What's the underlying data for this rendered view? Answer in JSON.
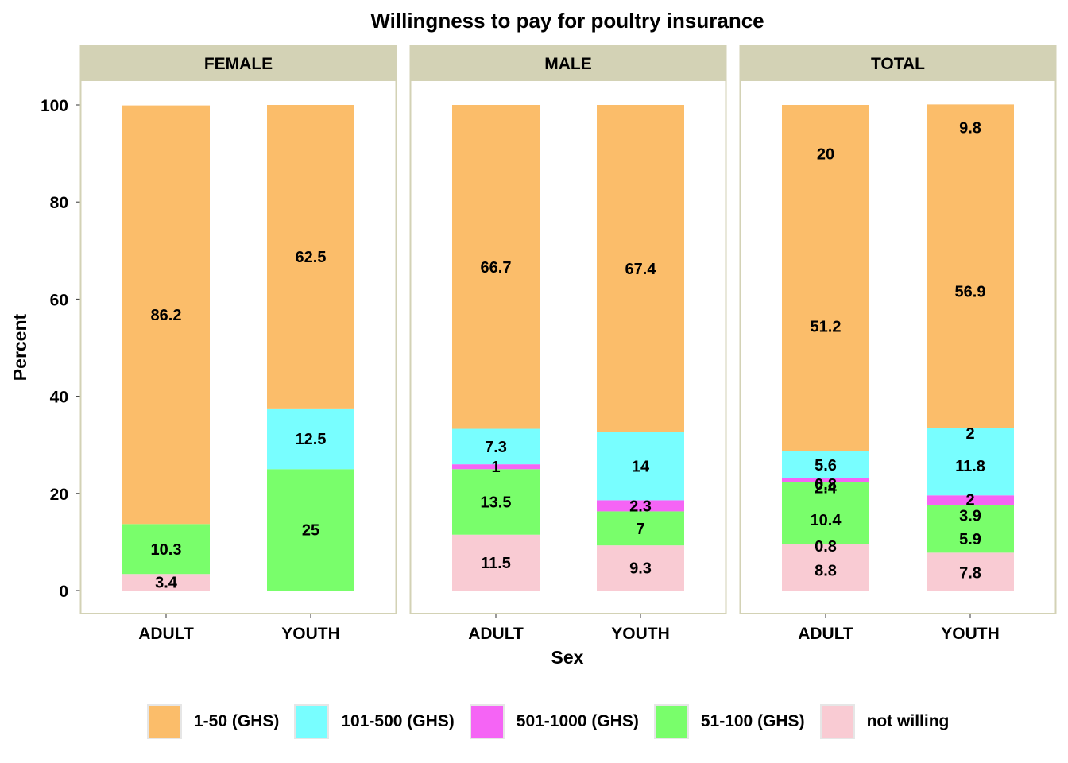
{
  "chart_data": {
    "type": "bar",
    "stacked": true,
    "title": "Willingness to pay for poultry insurance",
    "xlabel": "Sex",
    "ylabel": "Percent",
    "ylim": [
      0,
      100
    ],
    "yticks": [
      0,
      20,
      40,
      60,
      80,
      100
    ],
    "grid": false,
    "legend_position": "bottom",
    "facets": [
      "FEMALE",
      "MALE",
      "TOTAL"
    ],
    "categories": [
      "ADULT",
      "YOUTH"
    ],
    "series": [
      {
        "name": "not willing",
        "color": "#f9cbd3"
      },
      {
        "name": "51-100 (GHS)",
        "color": "#79fe6b"
      },
      {
        "name": "501-1000 (GHS)",
        "color": "#f564f5"
      },
      {
        "name": "101-500 (GHS)",
        "color": "#78feff"
      },
      {
        "name": "1-50 (GHS)",
        "color": "#fbbd6a"
      }
    ],
    "legend_order": [
      "1-50 (GHS)",
      "101-500 (GHS)",
      "501-1000 (GHS)",
      "51-100 (GHS)",
      "not willing"
    ],
    "bars": [
      {
        "facet": "FEMALE",
        "category": "ADULT",
        "segments": [
          {
            "series": "not willing",
            "value": 3.4,
            "label": "3.4"
          },
          {
            "series": "51-100 (GHS)",
            "value": 10.3,
            "label": "10.3"
          },
          {
            "series": "1-50 (GHS)",
            "value": 86.2,
            "label": "86.2"
          }
        ]
      },
      {
        "facet": "FEMALE",
        "category": "YOUTH",
        "segments": [
          {
            "series": "51-100 (GHS)",
            "value": 25,
            "label": "25"
          },
          {
            "series": "101-500 (GHS)",
            "value": 12.5,
            "label": "12.5"
          },
          {
            "series": "1-50 (GHS)",
            "value": 62.5,
            "label": "62.5"
          }
        ]
      },
      {
        "facet": "MALE",
        "category": "ADULT",
        "segments": [
          {
            "series": "not willing",
            "value": 11.5,
            "label": "11.5"
          },
          {
            "series": "51-100 (GHS)",
            "value": 13.5,
            "label": "13.5"
          },
          {
            "series": "501-1000 (GHS)",
            "value": 1,
            "label": "1"
          },
          {
            "series": "101-500 (GHS)",
            "value": 7.3,
            "label": "7.3"
          },
          {
            "series": "1-50 (GHS)",
            "value": 66.7,
            "label": "66.7"
          }
        ]
      },
      {
        "facet": "MALE",
        "category": "YOUTH",
        "segments": [
          {
            "series": "not willing",
            "value": 9.3,
            "label": "9.3"
          },
          {
            "series": "51-100 (GHS)",
            "value": 7,
            "label": "7"
          },
          {
            "series": "501-1000 (GHS)",
            "value": 2.3,
            "label": "2.3"
          },
          {
            "series": "101-500 (GHS)",
            "value": 14,
            "label": "14"
          },
          {
            "series": "1-50 (GHS)",
            "value": 67.4,
            "label": "67.4"
          }
        ]
      },
      {
        "facet": "TOTAL",
        "category": "ADULT",
        "segments": [
          {
            "series": "not willing",
            "value": 9.6,
            "label": "8.8",
            "label_at": 4.2
          },
          {
            "series": "51-100 (GHS)",
            "value": 12.8,
            "label": "10.4",
            "label_at": 14.6
          },
          {
            "series": "501-1000 (GHS)",
            "value": 0.8,
            "label": "0.8",
            "label_at": 21.9
          },
          {
            "series": "101-500 (GHS)",
            "value": 5.6,
            "label": "5.6",
            "label_at": 25.9
          },
          {
            "series": "1-50 (GHS)",
            "value": 71.2,
            "label": "51.2",
            "label_at": 54.4
          }
        ],
        "extra_labels": [
          {
            "text": "0.8",
            "at": 9.2
          },
          {
            "text": "2.4",
            "at": 21.2
          },
          {
            "text": "20",
            "at": 89.9
          }
        ]
      },
      {
        "facet": "TOTAL",
        "category": "YOUTH",
        "segments": [
          {
            "series": "not willing",
            "value": 7.8,
            "label": "7.8",
            "label_at": 3.7
          },
          {
            "series": "51-100 (GHS)",
            "value": 9.8,
            "label": "5.9",
            "label_at": 10.6
          },
          {
            "series": "501-1000 (GHS)",
            "value": 2,
            "label": "2",
            "label_at": 18.7
          },
          {
            "series": "101-500 (GHS)",
            "value": 13.8,
            "label": "11.8",
            "label_at": 25.7
          },
          {
            "series": "1-50 (GHS)",
            "value": 66.7,
            "label": "56.9",
            "label_at": 61.6
          }
        ],
        "extra_labels": [
          {
            "text": "3.9",
            "at": 15.5
          },
          {
            "text": "2",
            "at": 32.4
          },
          {
            "text": "9.8",
            "at": 95.3
          }
        ]
      }
    ]
  }
}
